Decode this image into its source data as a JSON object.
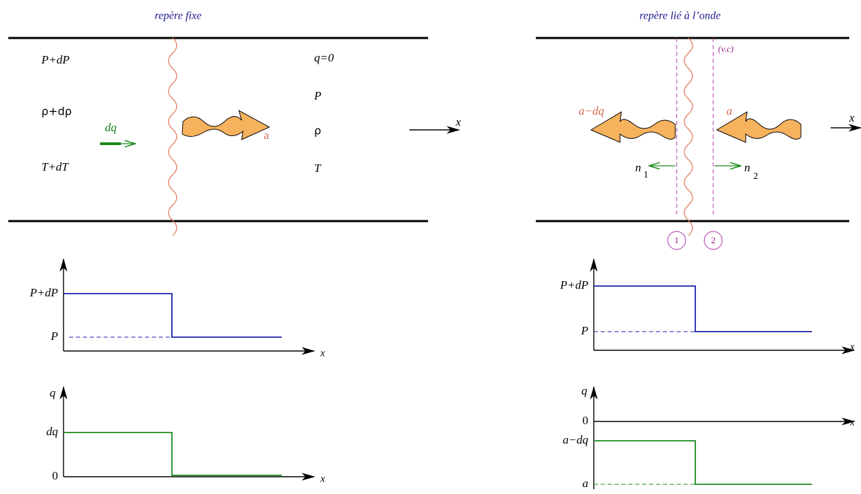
{
  "left_panel": {
    "title": "repère fixe",
    "upstream": [
      "P+dP",
      "ρ+dρ",
      "T+dT"
    ],
    "flow_label": "dq",
    "wave_label": "a",
    "downstream": [
      "q=0",
      "P",
      "ρ",
      "T"
    ],
    "axis_label": "x"
  },
  "right_panel": {
    "title": "repère lié à l’onde",
    "control_volume_label": "(v.c)",
    "left_wave_label": "a−dq",
    "right_wave_label": "a",
    "normal_1": {
      "label": "n",
      "subscript": "1"
    },
    "normal_2": {
      "label": "n",
      "subscript": "2"
    },
    "axis_label": "x",
    "sections": [
      "1",
      "2"
    ]
  },
  "plots": {
    "left_pressure": {
      "y_labels": [
        "P+dP",
        "P"
      ],
      "x_label": "x"
    },
    "left_flow": {
      "y_label": "q",
      "y_labels": [
        "dq",
        "0"
      ],
      "x_label": "x"
    },
    "right_pressure": {
      "y_labels": [
        "P+dP",
        "P"
      ],
      "x_label": "x"
    },
    "right_flow": {
      "y_label": "q",
      "y_labels": [
        "0",
        "a−dq",
        "a"
      ],
      "x_label": "x"
    }
  }
}
